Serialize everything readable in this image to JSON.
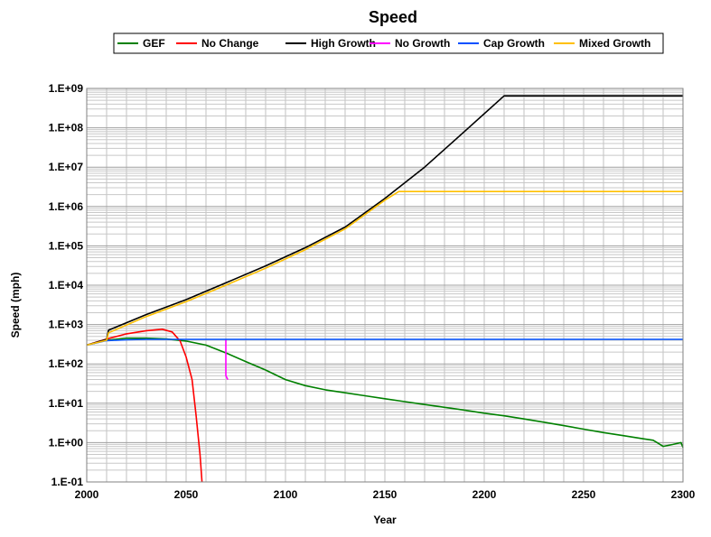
{
  "chart_data": {
    "type": "line",
    "title": "Speed",
    "xlabel": "Year",
    "ylabel": "Speed (mph)",
    "xlim": [
      2000,
      2300
    ],
    "ylim": [
      0.1,
      1000000000
    ],
    "yscale": "log",
    "grid": true,
    "legend_position": "top",
    "x_ticks": [
      "2000",
      "2050",
      "2100",
      "2150",
      "2200",
      "2250",
      "2300"
    ],
    "y_ticks": [
      "1.E-01",
      "1.E+00",
      "1.E+01",
      "1.E+02",
      "1.E+03",
      "1.E+04",
      "1.E+05",
      "1.E+06",
      "1.E+07",
      "1.E+08",
      "1.E+09"
    ],
    "series": [
      {
        "name": "GEF",
        "color": "#008000",
        "x": [
          2000,
          2010,
          2020,
          2030,
          2040,
          2050,
          2060,
          2070,
          2080,
          2090,
          2100,
          2110,
          2120,
          2130,
          2140,
          2150,
          2160,
          2170,
          2180,
          2190,
          2200,
          2210,
          2220,
          2230,
          2240,
          2250,
          2260,
          2270,
          2280,
          2285,
          2287,
          2290,
          2295,
          2299,
          2300
        ],
        "y": [
          300,
          400,
          450,
          450,
          430,
          380,
          300,
          190,
          115,
          70,
          40,
          28,
          22,
          18.5,
          15.5,
          13,
          11,
          9.3,
          7.9,
          6.7,
          5.6,
          4.8,
          4.0,
          3.3,
          2.7,
          2.2,
          1.8,
          1.5,
          1.25,
          1.15,
          1.0,
          0.8,
          0.9,
          1.0,
          0.75
        ]
      },
      {
        "name": "No Change",
        "color": "#ff0000",
        "x": [
          2000,
          2010,
          2020,
          2030,
          2038,
          2043,
          2047,
          2050,
          2053,
          2055,
          2057,
          2058
        ],
        "y": [
          300,
          430,
          580,
          700,
          760,
          650,
          380,
          150,
          40,
          5,
          0.5,
          0.1
        ]
      },
      {
        "name": "High Growth",
        "color": "#000000",
        "x": [
          2000,
          2010,
          2011,
          2030,
          2050,
          2070,
          2090,
          2110,
          2130,
          2150,
          2170,
          2190,
          2210,
          2250,
          2300
        ],
        "y": [
          300,
          420,
          720,
          1800,
          4300,
          11500,
          31000,
          90000,
          300000,
          1600000,
          10000000,
          80000000,
          650000000,
          650000000,
          650000000
        ]
      },
      {
        "name": "No Growth",
        "color": "#ff00ff",
        "x": [
          2070,
          2070,
          2071
        ],
        "y": [
          420,
          50,
          40
        ]
      },
      {
        "name": "Cap Growth",
        "color": "#0050ff",
        "x": [
          2000,
          2010,
          2020,
          2030,
          2040,
          2050,
          2100,
          2150,
          2200,
          2250,
          2300
        ],
        "y": [
          300,
          390,
          410,
          420,
          420,
          420,
          420,
          420,
          420,
          420,
          420
        ]
      },
      {
        "name": "Mixed Growth",
        "color": "#ffc000",
        "x": [
          2000,
          2010,
          2011,
          2030,
          2050,
          2070,
          2090,
          2110,
          2130,
          2150,
          2157,
          2200,
          2250,
          2300
        ],
        "y": [
          300,
          400,
          620,
          1600,
          3800,
          10000,
          27000,
          80000,
          270000,
          1450000,
          2400000,
          2400000,
          2400000,
          2400000
        ]
      }
    ]
  }
}
